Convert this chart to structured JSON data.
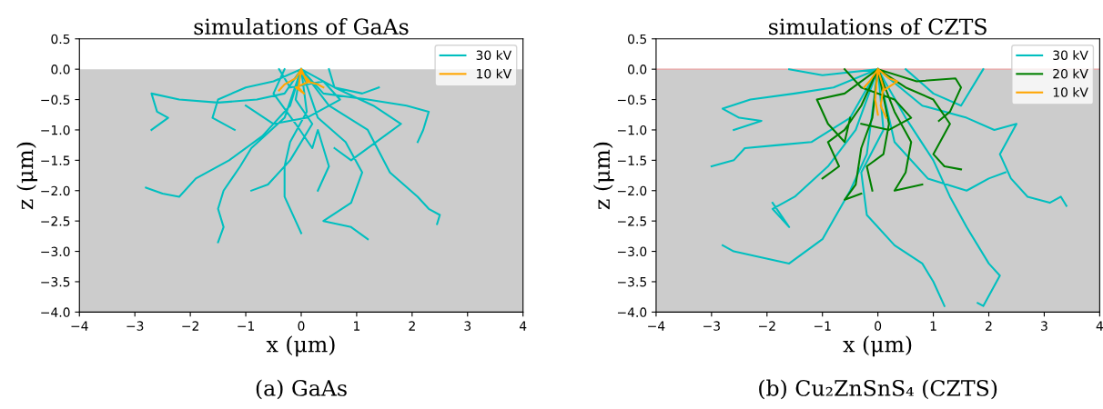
{
  "chart_data": [
    {
      "type": "line",
      "title": "simulations of GaAs",
      "xlabel": "x (μm)",
      "ylabel": "z (μm)",
      "annotations": [
        "(a) GaAs"
      ],
      "xlim": [
        -4,
        4
      ],
      "xticks": [
        -4,
        -3,
        -2,
        -1,
        0,
        1,
        2,
        3,
        4
      ],
      "ylim": [
        -4.0,
        0.5
      ],
      "yticks": [
        {
          "value": -4,
          "label": "−4.0"
        },
        -3.5,
        {
          "value": -3,
          "label": "−3.0"
        },
        -2.5,
        {
          "value": -2,
          "label": "−2.0"
        },
        -1.5,
        {
          "value": -1,
          "label": "−1.0"
        },
        -0.5,
        {
          "value": 0,
          "label": "0.0"
        },
        0.5
      ],
      "bands": [
        {
          "axis": "y",
          "from": -4.0,
          "to": 0.0,
          "color": "#cccccc"
        }
      ],
      "legend": "top right",
      "grid": false,
      "marker": "none",
      "line_style": "solid",
      "series": [
        {
          "name": "30 kV",
          "color": "#00bfbf",
          "x": [
            0,
            -0.3,
            -0.8,
            -1.5,
            -2.2,
            -2.7,
            -2.6,
            -2.4,
            -2.7,
            null,
            0,
            -0.2,
            -0.7,
            -1.3,
            -1.9,
            -2.2,
            -2.5,
            -2.8,
            null,
            0,
            -0.3,
            -0.9,
            -1.1,
            -1.4,
            -1.5,
            -1.4,
            -1.5,
            null,
            0,
            0.1,
            -0.2,
            -0.3,
            -0.3,
            -0.1,
            0,
            null,
            0,
            0.3,
            0.8,
            1.1,
            0.9,
            0.4,
            0.9,
            1.2,
            null,
            0,
            0.5,
            1.2,
            1.6,
            2.1,
            2.3,
            2.5,
            2.45,
            null,
            0,
            0.6,
            1.3,
            1.8,
            1.5,
            0.9,
            0.6,
            null,
            0,
            0.4,
            1.2,
            1.9,
            2.3,
            2.2,
            2.1,
            null,
            0,
            -0.5,
            -1.0,
            -1.5,
            -1.6,
            -1.2,
            null,
            -0.3,
            -0.5,
            -0.1,
            0.2,
            0.3,
            0.5,
            0.3,
            null,
            0.5,
            0.6,
            1.1,
            1.4,
            null,
            -0.4,
            -0.2,
            0.4,
            0.7,
            0.1,
            -0.5,
            -1.0,
            null,
            0,
            -0.1,
            0.2,
            -0.2,
            -0.6,
            -0.9
          ],
          "values": [
            0,
            -0.4,
            -0.5,
            -0.55,
            -0.5,
            -0.4,
            -0.7,
            -0.8,
            -1.0,
            null,
            0,
            -0.6,
            -1.1,
            -1.5,
            -1.8,
            -2.1,
            -2.05,
            -1.95,
            null,
            0,
            -0.8,
            -1.3,
            -1.6,
            -2.0,
            -2.3,
            -2.6,
            -2.85,
            null,
            0,
            -0.7,
            -1.2,
            -1.6,
            -2.1,
            -2.5,
            -2.7,
            null,
            0,
            -0.8,
            -1.2,
            -1.7,
            -2.2,
            -2.5,
            -2.6,
            -2.8,
            null,
            0,
            -0.6,
            -1.0,
            -1.7,
            -2.1,
            -2.3,
            -2.4,
            -2.55,
            null,
            0,
            -0.3,
            -0.6,
            -0.9,
            -1.1,
            -1.5,
            -1.3,
            null,
            0,
            -0.4,
            -0.5,
            -0.6,
            -0.7,
            -1.0,
            -1.2,
            null,
            0,
            -0.2,
            -0.3,
            -0.5,
            -0.8,
            -1.0,
            null,
            0,
            -0.4,
            -0.9,
            -1.3,
            -1.0,
            -1.6,
            -2.0,
            null,
            0,
            -0.3,
            -0.4,
            -0.3,
            null,
            0,
            -0.3,
            -0.2,
            -0.5,
            -0.8,
            -0.9,
            -0.6,
            null,
            0,
            -0.5,
            -0.9,
            -1.5,
            -1.9,
            -2.0
          ]
        },
        {
          "name": "10 kV",
          "color": "#ffa500",
          "x": [
            0,
            -0.1,
            -0.3,
            -0.4,
            null,
            0,
            0.1,
            0.3,
            0.4,
            null,
            0,
            -0.05,
            0.05,
            -0.1,
            0.15,
            0
          ],
          "values": [
            0,
            -0.15,
            -0.25,
            -0.35,
            null,
            0,
            -0.2,
            -0.25,
            -0.3,
            null,
            0,
            -0.3,
            -0.4,
            -0.3,
            -0.2,
            -0.05
          ]
        }
      ]
    },
    {
      "type": "line",
      "title": "simulations of CZTS",
      "xlabel": "x (μm)",
      "ylabel": "z (μm)",
      "annotations": [
        "(b) Cu₂ZnSnS₄ (CZTS)"
      ],
      "xlim": [
        -4,
        4
      ],
      "xticks": [
        -4,
        -3,
        -2,
        -1,
        0,
        1,
        2,
        3,
        4
      ],
      "ylim": [
        -4.0,
        0.5
      ],
      "yticks": [
        {
          "value": -4,
          "label": "−4.0"
        },
        -3.5,
        {
          "value": -3,
          "label": "−3.0"
        },
        -2.5,
        {
          "value": -2,
          "label": "−2.0"
        },
        -1.5,
        {
          "value": -1,
          "label": "−1.0"
        },
        -0.5,
        {
          "value": 0,
          "label": "0.0"
        },
        0.5
      ],
      "bands": [
        {
          "axis": "y",
          "from": -4.0,
          "to": 0.0,
          "color": "#cccccc"
        }
      ],
      "ref_lines": [
        {
          "axis": "y",
          "value": 0.0,
          "color": "#e8a0a0"
        }
      ],
      "legend": "top right",
      "grid": false,
      "marker": "none",
      "line_style": "solid",
      "series": [
        {
          "name": "30 kV",
          "color": "#00bfbf",
          "x": [
            0,
            -0.8,
            -1.5,
            -2.3,
            -2.8,
            -2.5,
            -2.1,
            -2.6,
            null,
            0,
            -0.5,
            -1.2,
            -1.8,
            -2.4,
            -2.6,
            -3.0,
            null,
            0,
            -0.4,
            -0.9,
            -1.5,
            -1.9,
            -1.6,
            -1.9,
            null,
            0,
            -0.2,
            -0.5,
            -1.0,
            -1.6,
            -2.1,
            -2.6,
            -2.8,
            null,
            0,
            0.1,
            -0.3,
            -0.2,
            0.3,
            0.8,
            1.0,
            1.2,
            null,
            0,
            0.5,
            1.0,
            1.3,
            1.6,
            2.0,
            2.2,
            1.9,
            1.8,
            null,
            0,
            0.8,
            1.6,
            2.1,
            2.5,
            2.2,
            2.4,
            2.7,
            3.1,
            3.3,
            3.4,
            null,
            0.5,
            1.0,
            1.5,
            1.9,
            null,
            0,
            -1.0,
            -1.6,
            null,
            0,
            0.3,
            0.9,
            1.6,
            2.0,
            2.3
          ],
          "values": [
            0,
            -0.3,
            -0.4,
            -0.5,
            -0.65,
            -0.8,
            -0.85,
            -1.0,
            null,
            0,
            -0.8,
            -1.2,
            -1.25,
            -1.3,
            -1.5,
            -1.6,
            null,
            0,
            -1.0,
            -1.6,
            -2.1,
            -2.3,
            -2.6,
            -2.2,
            null,
            0,
            -1.4,
            -2.0,
            -2.8,
            -3.2,
            -3.1,
            -3.0,
            -2.9,
            null,
            0,
            -1.0,
            -1.7,
            -2.4,
            -2.9,
            -3.2,
            -3.5,
            -3.9,
            null,
            0,
            -0.8,
            -1.5,
            -2.1,
            -2.6,
            -3.2,
            -3.4,
            -3.9,
            -3.85,
            null,
            0,
            -0.6,
            -0.8,
            -1.0,
            -0.9,
            -1.4,
            -1.8,
            -2.1,
            -2.2,
            -2.1,
            -2.25,
            null,
            0,
            -0.4,
            -0.6,
            0,
            null,
            0,
            -0.1,
            0,
            null,
            0,
            -1.2,
            -1.8,
            -2.0,
            -1.8,
            -1.7
          ]
        },
        {
          "name": "20 kV",
          "color": "#008000",
          "x": [
            0,
            -0.6,
            -1.1,
            -0.9,
            -0.6,
            -0.5,
            null,
            0,
            -0.3,
            -0.6,
            -0.9,
            -0.7,
            -1.0,
            null,
            0,
            -0.1,
            -0.3,
            -0.4,
            -0.6,
            -0.3,
            null,
            0,
            0.2,
            0.1,
            -0.2,
            -0.1,
            null,
            0,
            0.3,
            0.6,
            0.5,
            0.3,
            0.8,
            null,
            0,
            0.5,
            1.0,
            1.3,
            1.0,
            1.2,
            1.5,
            null,
            0,
            0.7,
            1.4,
            1.5,
            1.3,
            1.1,
            null,
            -0.6,
            -0.3,
            0.3,
            0.6,
            0.2,
            -0.3
          ],
          "values": [
            0,
            -0.4,
            -0.5,
            -0.9,
            -1.2,
            -0.8,
            null,
            0,
            -0.6,
            -1.0,
            -1.2,
            -1.6,
            -1.8,
            null,
            0,
            -0.8,
            -1.3,
            -1.9,
            -2.15,
            -2.05,
            null,
            0,
            -0.9,
            -1.4,
            -1.6,
            -2.0,
            null,
            0,
            -0.7,
            -1.2,
            -1.7,
            -2.0,
            -1.9,
            null,
            0,
            -0.3,
            -0.5,
            -0.9,
            -1.4,
            -1.6,
            -1.65,
            null,
            0,
            -0.2,
            -0.15,
            -0.3,
            -0.7,
            -0.85,
            null,
            0,
            -0.3,
            -0.5,
            -0.8,
            -1.0,
            -0.9
          ]
        },
        {
          "name": "10 kV",
          "color": "#ffa500",
          "x": [
            0,
            -0.15,
            -0.25,
            null,
            0,
            0.1,
            0.05,
            0.15,
            null,
            0,
            0.2,
            0.35,
            0.1,
            null,
            0,
            -0.05,
            0
          ],
          "values": [
            0,
            -0.2,
            -0.3,
            null,
            0,
            -0.3,
            -0.6,
            -0.8,
            null,
            0,
            -0.15,
            -0.2,
            -0.35,
            null,
            0,
            -0.5,
            -0.75
          ]
        }
      ]
    }
  ]
}
